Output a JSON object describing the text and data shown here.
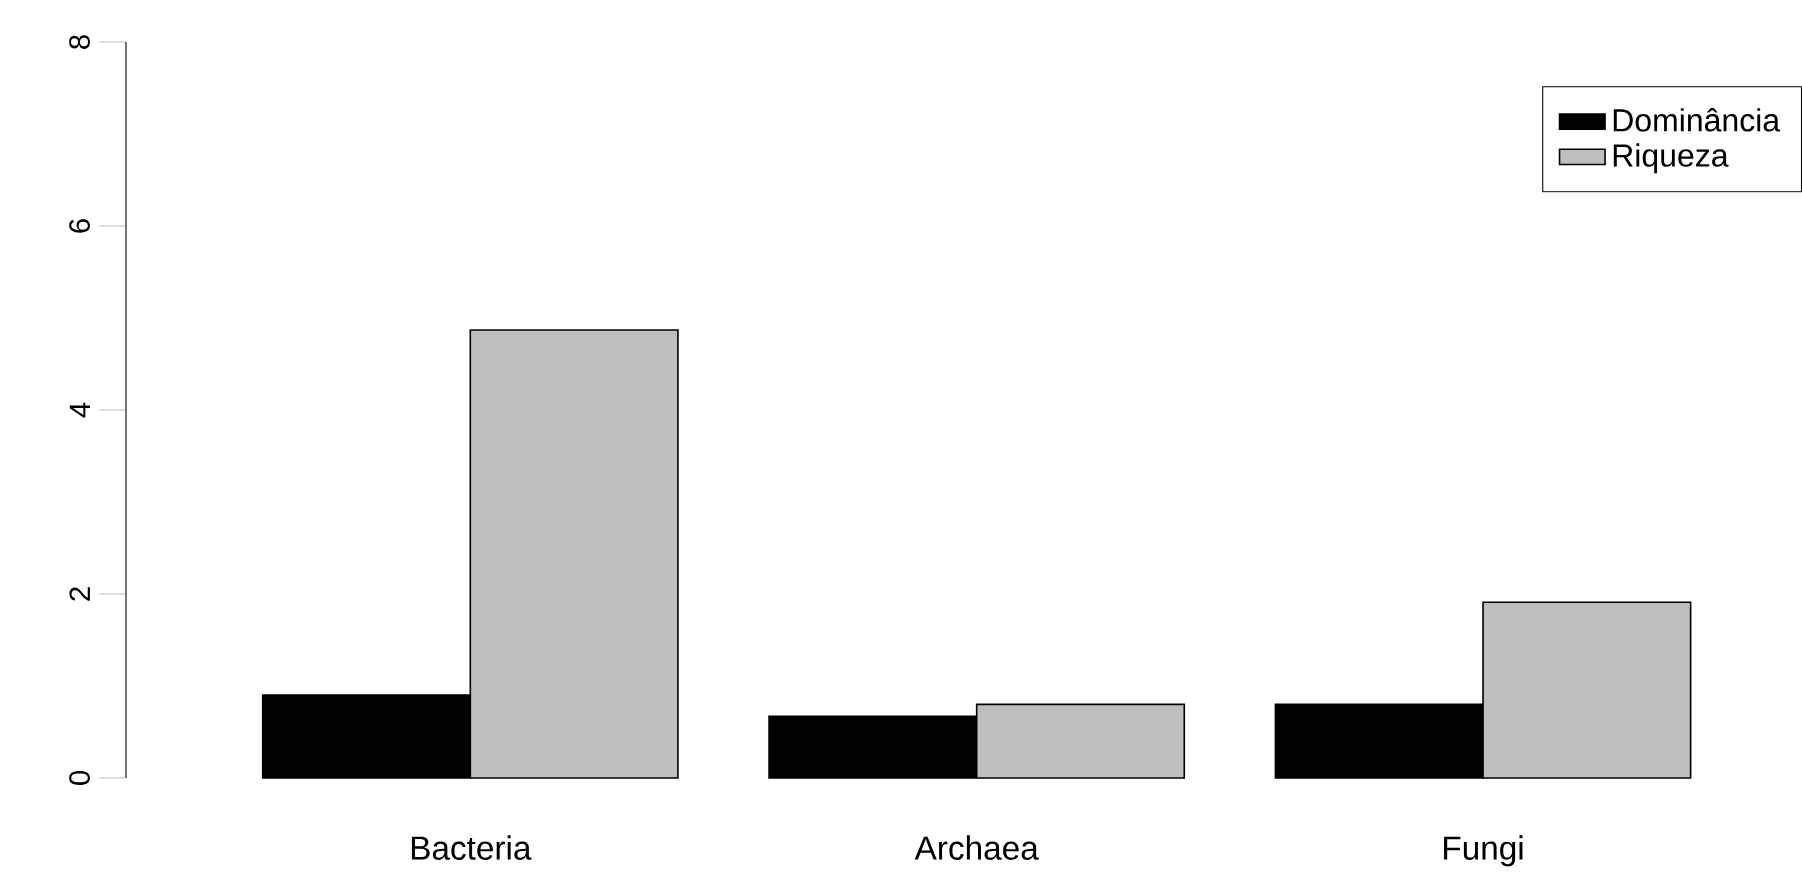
{
  "chart_data": {
    "type": "bar",
    "categories": [
      "Bacteria",
      "Archaea",
      "Fungi"
    ],
    "series": [
      {
        "name": "Dominância",
        "color": "#000000",
        "values": [
          0.9,
          0.67,
          0.8
        ]
      },
      {
        "name": "Riqueza",
        "color": "#bebebe",
        "values": [
          4.87,
          0.8,
          1.91
        ]
      }
    ],
    "ylim": [
      0,
      8
    ],
    "yticks": [
      0,
      2,
      4,
      6,
      8
    ],
    "legend": "top right",
    "grid": false
  }
}
